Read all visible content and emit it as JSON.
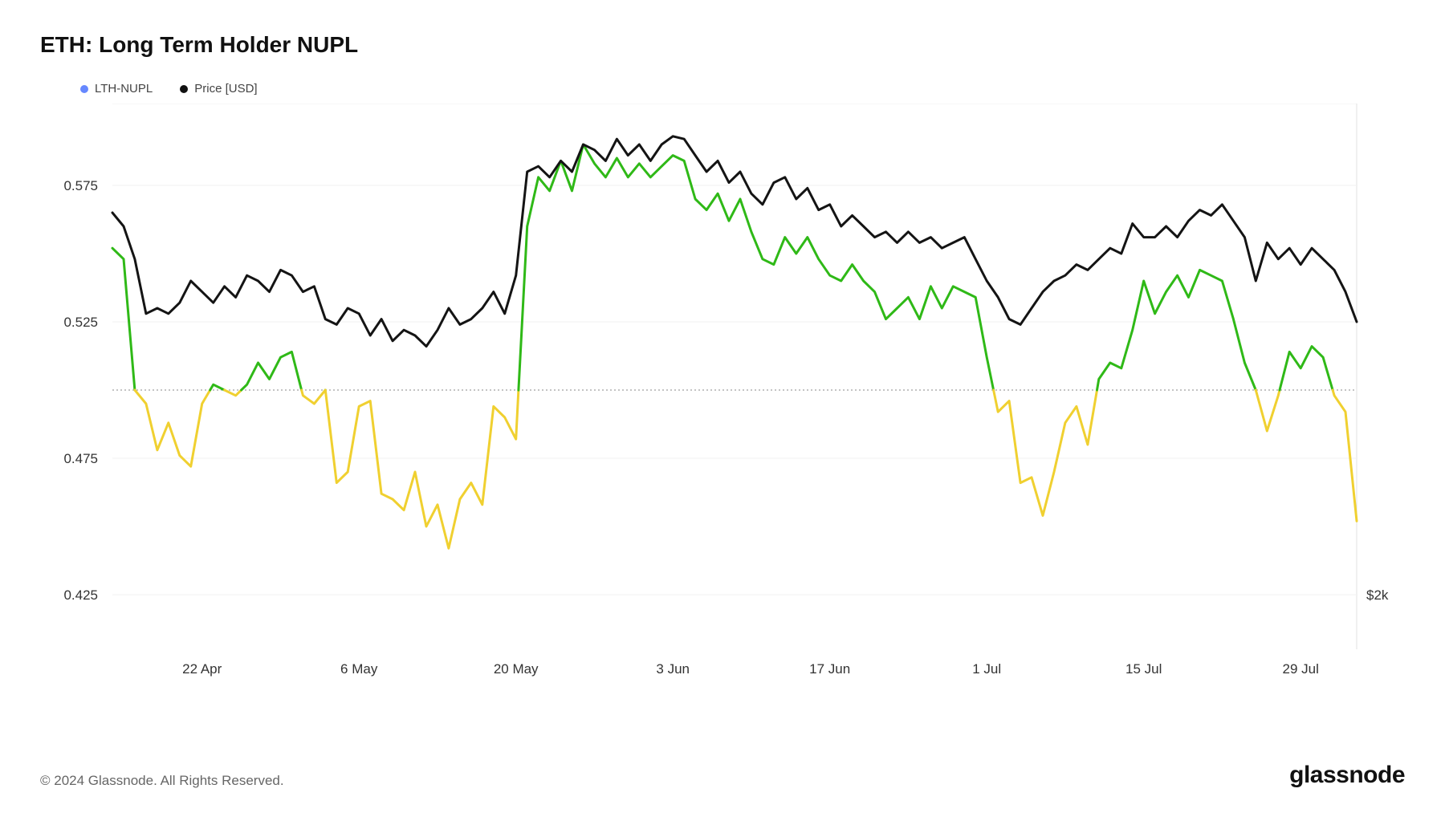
{
  "title": "ETH: Long Term Holder NUPL",
  "legend": [
    {
      "label": "LTH-NUPL",
      "color": "#6688ff"
    },
    {
      "label": "Price [USD]",
      "color": "#111111"
    }
  ],
  "copyright": "© 2024 Glassnode. All Rights Reserved.",
  "brand": "glassnode",
  "chart": {
    "type": "line",
    "background_color": "#ffffff",
    "grid_color": "#f2f2f2",
    "threshold": {
      "value": 0.5,
      "dash": "2 3",
      "color": "#888888"
    },
    "y_axis": {
      "min": 0.405,
      "max": 0.605,
      "ticks": [
        0.425,
        0.475,
        0.525,
        0.575
      ],
      "label_fontsize": 17,
      "label_color": "#333333"
    },
    "y2_axis": {
      "ticks": [
        {
          "at_y": 0.425,
          "label": "$2k"
        }
      ],
      "label_fontsize": 17,
      "label_color": "#333333"
    },
    "x_axis": {
      "ticks": [
        {
          "idx": 8,
          "label": "22 Apr"
        },
        {
          "idx": 22,
          "label": "6 May"
        },
        {
          "idx": 36,
          "label": "20 May"
        },
        {
          "idx": 50,
          "label": "3 Jun"
        },
        {
          "idx": 64,
          "label": "17 Jun"
        },
        {
          "idx": 78,
          "label": "1 Jul"
        },
        {
          "idx": 92,
          "label": "15 Jul"
        },
        {
          "idx": 106,
          "label": "29 Jul"
        }
      ],
      "label_fontsize": 17,
      "label_color": "#333333"
    },
    "series": {
      "price": {
        "color": "#141414",
        "width": 3,
        "data": [
          0.565,
          0.56,
          0.548,
          0.528,
          0.53,
          0.528,
          0.532,
          0.54,
          0.536,
          0.532,
          0.538,
          0.534,
          0.542,
          0.54,
          0.536,
          0.544,
          0.542,
          0.536,
          0.538,
          0.526,
          0.524,
          0.53,
          0.528,
          0.52,
          0.526,
          0.518,
          0.522,
          0.52,
          0.516,
          0.522,
          0.53,
          0.524,
          0.526,
          0.53,
          0.536,
          0.528,
          0.542,
          0.58,
          0.582,
          0.578,
          0.584,
          0.58,
          0.59,
          0.588,
          0.584,
          0.592,
          0.586,
          0.59,
          0.584,
          0.59,
          0.593,
          0.592,
          0.586,
          0.58,
          0.584,
          0.576,
          0.58,
          0.572,
          0.568,
          0.576,
          0.578,
          0.57,
          0.574,
          0.566,
          0.568,
          0.56,
          0.564,
          0.56,
          0.556,
          0.558,
          0.554,
          0.558,
          0.554,
          0.556,
          0.552,
          0.554,
          0.556,
          0.548,
          0.54,
          0.534,
          0.526,
          0.524,
          0.53,
          0.536,
          0.54,
          0.542,
          0.546,
          0.544,
          0.548,
          0.552,
          0.55,
          0.561,
          0.556,
          0.556,
          0.56,
          0.556,
          0.562,
          0.566,
          0.564,
          0.568,
          0.562,
          0.556,
          0.54,
          0.554,
          0.548,
          0.552,
          0.546,
          0.552,
          0.548,
          0.544,
          0.536,
          0.525
        ]
      },
      "nupl": {
        "threshold": 0.5,
        "color_above": "#2fb917",
        "color_below": "#f0d030",
        "width": 3,
        "data": [
          0.552,
          0.548,
          0.5,
          0.495,
          0.478,
          0.488,
          0.476,
          0.472,
          0.495,
          0.502,
          0.5,
          0.498,
          0.502,
          0.51,
          0.504,
          0.512,
          0.514,
          0.498,
          0.495,
          0.5,
          0.466,
          0.47,
          0.494,
          0.496,
          0.462,
          0.46,
          0.456,
          0.47,
          0.45,
          0.458,
          0.442,
          0.46,
          0.466,
          0.458,
          0.494,
          0.49,
          0.482,
          0.56,
          0.578,
          0.573,
          0.584,
          0.573,
          0.59,
          0.583,
          0.578,
          0.585,
          0.578,
          0.583,
          0.578,
          0.582,
          0.586,
          0.584,
          0.57,
          0.566,
          0.572,
          0.562,
          0.57,
          0.558,
          0.548,
          0.546,
          0.556,
          0.55,
          0.556,
          0.548,
          0.542,
          0.54,
          0.546,
          0.54,
          0.536,
          0.526,
          0.53,
          0.534,
          0.526,
          0.538,
          0.53,
          0.538,
          0.536,
          0.534,
          0.512,
          0.492,
          0.496,
          0.466,
          0.468,
          0.454,
          0.47,
          0.488,
          0.494,
          0.48,
          0.504,
          0.51,
          0.508,
          0.522,
          0.54,
          0.528,
          0.536,
          0.542,
          0.534,
          0.544,
          0.542,
          0.54,
          0.526,
          0.51,
          0.5,
          0.485,
          0.498,
          0.514,
          0.508,
          0.516,
          0.512,
          0.498,
          0.492,
          0.452
        ]
      }
    },
    "plot_border_color": "#e6e6e6",
    "line_join": "round"
  }
}
